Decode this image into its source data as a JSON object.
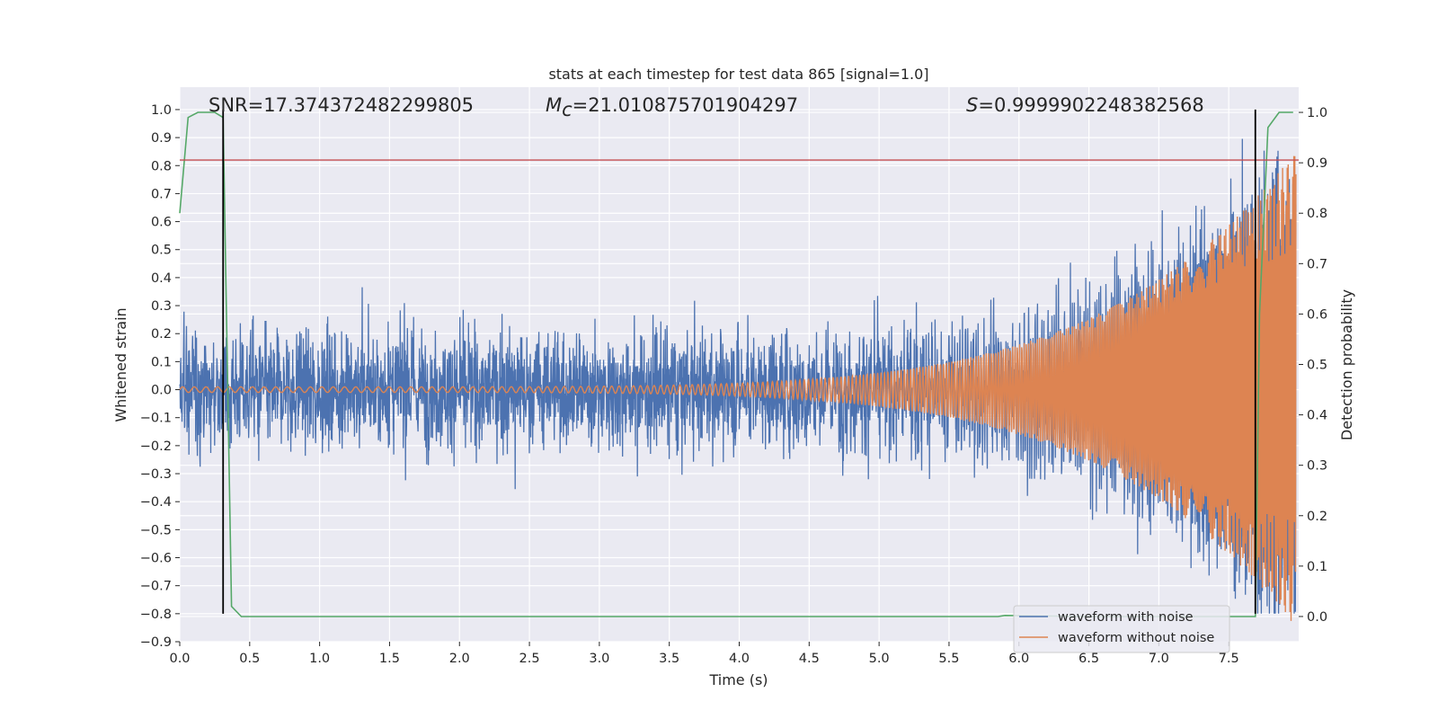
{
  "chart_data": {
    "type": "line",
    "title": "stats at each timestep for test data 865 [signal=1.0]",
    "xlabel": "Time (s)",
    "ylabel": "Whitened strain",
    "y2label": "Detection probability",
    "xlim": [
      0.0,
      8.0
    ],
    "ylim": [
      -0.9,
      1.08
    ],
    "y2lim": [
      -0.05,
      1.05
    ],
    "grid": true,
    "legend_position": "lower-right",
    "x_ticks": [
      "0.0",
      "0.5",
      "1.0",
      "1.5",
      "2.0",
      "2.5",
      "3.0",
      "3.5",
      "4.0",
      "4.5",
      "5.0",
      "5.5",
      "6.0",
      "6.5",
      "7.0",
      "7.5"
    ],
    "y_ticks": [
      "1.0",
      "0.9",
      "0.8",
      "0.7",
      "0.6",
      "0.5",
      "0.4",
      "0.3",
      "0.2",
      "0.1",
      "0.0",
      "−0.1",
      "−0.2",
      "−0.3",
      "−0.4",
      "−0.5",
      "−0.6",
      "−0.7",
      "−0.8",
      "−0.9"
    ],
    "y2_ticks": [
      "1.0",
      "0.9",
      "0.8",
      "0.7",
      "0.6",
      "0.5",
      "0.4",
      "0.3",
      "0.2",
      "0.1",
      "0.0"
    ],
    "annotations": {
      "snr": "SNR=17.374372482299805",
      "mc_symbol": "M",
      "mc_sub": "c",
      "mc_value": "=21.010875701904297",
      "s_symbol": "S",
      "s_value": "=0.9999902248382568"
    },
    "threshold": {
      "value": 0.82,
      "color": "#c44e52"
    },
    "vertical_markers": [
      {
        "x": 0.31,
        "y_from": 1.0,
        "y_to": -0.8
      },
      {
        "x": 7.69,
        "y_from": 1.0,
        "y_to": -0.8
      }
    ],
    "series": [
      {
        "name": "waveform with noise",
        "color": "#4c72b0",
        "noise_amplitude": 0.3,
        "min": -0.8,
        "max": 1.0
      },
      {
        "name": "waveform without noise",
        "color": "#dd8452",
        "x_start": 0.0,
        "x_end": 7.98,
        "f_start": 12,
        "f_end": 70,
        "amp_start": 0.01,
        "amp_end": 0.85
      },
      {
        "name": "",
        "color": "#55a868",
        "axis": "right",
        "x": [
          0.0,
          0.06,
          0.13,
          0.25,
          0.31,
          0.37,
          0.44,
          0.5,
          1.0,
          2.0,
          3.0,
          4.0,
          5.0,
          5.85,
          5.9,
          6.5,
          7.0,
          7.5,
          7.69,
          7.72,
          7.78,
          7.86,
          7.96
        ],
        "values": [
          0.8,
          0.99,
          1.0,
          1.0,
          0.99,
          0.02,
          0.0,
          0.0,
          0.0,
          0.0,
          0.0,
          0.0,
          0.0,
          0.0,
          0.002,
          0.0,
          0.0,
          0.0,
          0.0,
          0.6,
          0.97,
          1.0,
          1.0
        ]
      }
    ]
  }
}
